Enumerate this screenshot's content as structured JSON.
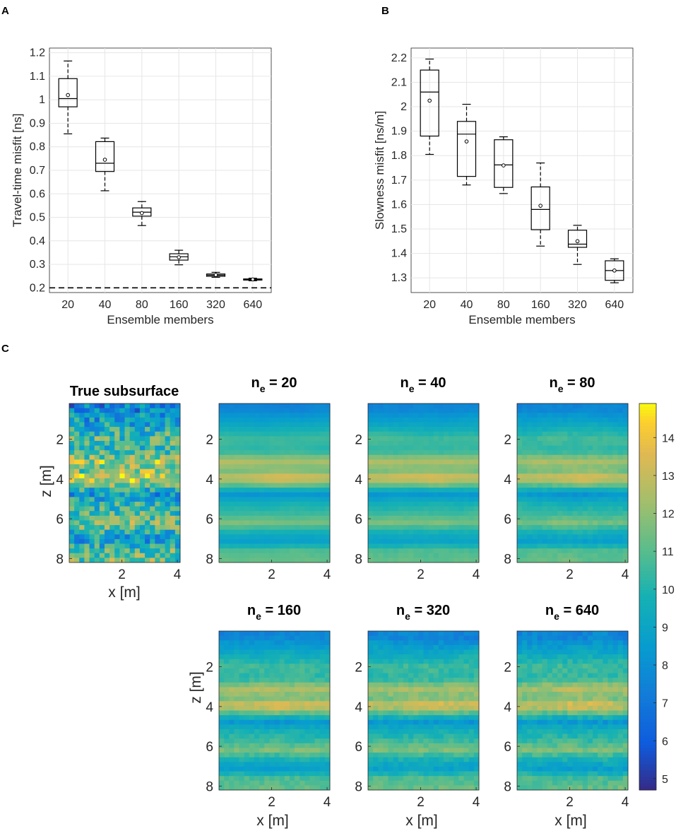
{
  "chart_data": [
    {
      "panel": "A",
      "type": "box",
      "xlabel": "Ensemble members",
      "ylabel": "Travel-time misfit [ns]",
      "categories": [
        "20",
        "40",
        "80",
        "160",
        "320",
        "640"
      ],
      "ylim": [
        0.18,
        1.22
      ],
      "yticks": [
        "0.2",
        "0.3",
        "0.4",
        "0.5",
        "0.6",
        "0.7",
        "0.8",
        "0.9",
        "1",
        "1.1",
        "1.2"
      ],
      "reference_line": 0.2,
      "boxes": [
        {
          "min": 0.855,
          "q1": 0.97,
          "median": 1.005,
          "q3": 1.09,
          "max": 1.165,
          "mean": 1.02
        },
        {
          "min": 0.613,
          "q1": 0.695,
          "median": 0.73,
          "q3": 0.822,
          "max": 0.837,
          "mean": 0.745
        },
        {
          "min": 0.465,
          "q1": 0.505,
          "median": 0.522,
          "q3": 0.54,
          "max": 0.567,
          "mean": 0.518
        },
        {
          "min": 0.298,
          "q1": 0.318,
          "median": 0.332,
          "q3": 0.345,
          "max": 0.36,
          "mean": 0.33
        },
        {
          "min": 0.245,
          "q1": 0.249,
          "median": 0.254,
          "q3": 0.259,
          "max": 0.266,
          "mean": 0.255
        },
        {
          "min": 0.23,
          "q1": 0.233,
          "median": 0.235,
          "q3": 0.238,
          "max": 0.241,
          "mean": 0.236
        }
      ]
    },
    {
      "panel": "B",
      "type": "box",
      "xlabel": "Ensemble members",
      "ylabel": "Slowness misfit [ns/m]",
      "categories": [
        "20",
        "40",
        "80",
        "160",
        "320",
        "640"
      ],
      "ylim": [
        1.24,
        2.24
      ],
      "yticks": [
        "1.3",
        "1.4",
        "1.5",
        "1.6",
        "1.7",
        "1.8",
        "1.9",
        "2",
        "2.1",
        "2.2"
      ],
      "boxes": [
        {
          "min": 1.805,
          "q1": 1.88,
          "median": 2.06,
          "q3": 2.15,
          "max": 2.195,
          "mean": 2.025
        },
        {
          "min": 1.68,
          "q1": 1.715,
          "median": 1.888,
          "q3": 1.94,
          "max": 2.01,
          "mean": 1.858
        },
        {
          "min": 1.645,
          "q1": 1.67,
          "median": 1.762,
          "q3": 1.865,
          "max": 1.877,
          "mean": 1.76
        },
        {
          "min": 1.43,
          "q1": 1.497,
          "median": 1.58,
          "q3": 1.672,
          "max": 1.77,
          "mean": 1.595
        },
        {
          "min": 1.355,
          "q1": 1.425,
          "median": 1.438,
          "q3": 1.495,
          "max": 1.515,
          "mean": 1.45
        },
        {
          "min": 1.28,
          "q1": 1.29,
          "median": 1.33,
          "q3": 1.37,
          "max": 1.378,
          "mean": 1.33
        }
      ]
    },
    {
      "panel": "C",
      "type": "heatmap",
      "xlabel": "x [m]",
      "ylabel": "z [m]",
      "xticks": [
        "2",
        "4"
      ],
      "zticks": [
        "2",
        "4",
        "6",
        "8"
      ],
      "colorbar": {
        "min": 4.7,
        "max": 14.9,
        "ticks": [
          "5",
          "6",
          "7",
          "8",
          "9",
          "10",
          "11",
          "12",
          "13",
          "14"
        ]
      },
      "maps": [
        {
          "title": "True subsurface",
          "sub": "",
          "value": "",
          "noise": 2.4,
          "smooth": 0.0
        },
        {
          "title": "n",
          "sub": "e",
          "value": " = 20",
          "noise": 0.55,
          "smooth": 0.85
        },
        {
          "title": "n",
          "sub": "e",
          "value": " = 40",
          "noise": 0.65,
          "smooth": 0.8
        },
        {
          "title": "n",
          "sub": "e",
          "value": " = 80",
          "noise": 0.8,
          "smooth": 0.7
        },
        {
          "title": "n",
          "sub": "e",
          "value": " = 160",
          "noise": 0.9,
          "smooth": 0.6
        },
        {
          "title": "n",
          "sub": "e",
          "value": " = 320",
          "noise": 1.0,
          "smooth": 0.55
        },
        {
          "title": "n",
          "sub": "e",
          "value": " = 640",
          "noise": 1.05,
          "smooth": 0.5
        }
      ],
      "layer_profile": [
        {
          "z": 0.5,
          "v": 7.6
        },
        {
          "z": 1.2,
          "v": 9.0
        },
        {
          "z": 2.0,
          "v": 10.6
        },
        {
          "z": 2.6,
          "v": 10.2
        },
        {
          "z": 3.1,
          "v": 12.6
        },
        {
          "z": 3.6,
          "v": 11.4
        },
        {
          "z": 3.95,
          "v": 13.2
        },
        {
          "z": 4.3,
          "v": 11.0
        },
        {
          "z": 4.8,
          "v": 8.2
        },
        {
          "z": 5.2,
          "v": 9.6
        },
        {
          "z": 5.7,
          "v": 10.4
        },
        {
          "z": 6.2,
          "v": 11.6
        },
        {
          "z": 6.6,
          "v": 10.0
        },
        {
          "z": 7.1,
          "v": 8.6
        },
        {
          "z": 7.6,
          "v": 10.8
        },
        {
          "z": 8.1,
          "v": 11.2
        }
      ]
    }
  ],
  "panel_labels": [
    "A",
    "B",
    "C"
  ]
}
